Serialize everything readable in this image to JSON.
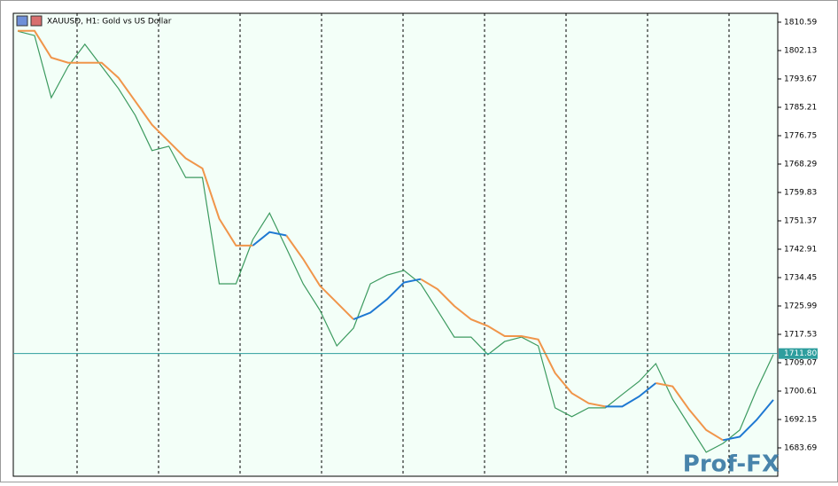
{
  "chart_data": {
    "type": "line",
    "title": "XAUUSD, H1:  Gold vs US Dollar",
    "watermark": "Prof-FX",
    "categories": [
      null,
      null,
      null,
      null,
      null,
      null,
      null,
      null,
      null,
      null,
      null,
      null,
      null,
      null,
      null,
      null,
      null,
      null,
      null,
      null,
      null,
      null,
      null,
      null,
      null,
      null,
      null,
      null,
      null,
      null,
      null,
      null,
      null,
      null,
      null,
      null,
      null,
      null,
      null,
      null,
      null,
      null,
      null,
      null,
      null,
      null
    ],
    "series": [
      {
        "color": "#3c9a5f",
        "values": [
          1807.9,
          1806.6,
          1788.1,
          1797.4,
          1804,
          1797.4,
          1790.8,
          1782.8,
          1772.3,
          1773.6,
          1764.3,
          1764.3,
          1732.6,
          1732.6,
          1745.8,
          1753.7,
          1743.2,
          1732.6,
          1724.7,
          1714.1,
          1719.4,
          1732.6,
          1735.2,
          1736.6,
          1732.6,
          1724.7,
          1716.7,
          1716.7,
          1711.5,
          1715.4,
          1716.7,
          1714.1,
          1695.6,
          1693,
          1695.6,
          1695.6,
          1699.6,
          1703.5,
          1708.8,
          1698.2,
          1690.3,
          1682.4,
          1685,
          1689,
          1700.9,
          1711.5
        ]
      },
      {
        "color": "#f0954a",
        "values": [
          1808,
          1808,
          1800,
          1798.5,
          1798.5,
          1798.5,
          1794,
          1787,
          1780,
          1775,
          1770,
          1767,
          1752,
          1744,
          1744,
          null,
          1747,
          1740,
          1732,
          1727,
          1722,
          null,
          null,
          null,
          1734,
          1731,
          1726,
          1722,
          1720,
          1717,
          1717,
          1716,
          1706,
          1700,
          1697,
          1696,
          null,
          null,
          1703,
          1702,
          1695,
          1689,
          1686,
          null,
          null,
          null
        ]
      },
      {
        "color": "#1e78d2",
        "values": [
          null,
          null,
          null,
          null,
          null,
          null,
          null,
          null,
          null,
          null,
          null,
          null,
          null,
          null,
          1744,
          1748,
          1747,
          null,
          null,
          null,
          1722,
          1724,
          1728,
          1733,
          1734,
          null,
          null,
          null,
          null,
          null,
          null,
          null,
          null,
          null,
          null,
          1696,
          1696,
          1699,
          1703,
          null,
          null,
          null,
          1686,
          1687,
          1692,
          1698
        ]
      }
    ],
    "ylim": [
      1675.23,
      1813.23
    ],
    "yticks": [
      1810.59,
      1802.13,
      1793.67,
      1785.21,
      1776.75,
      1768.29,
      1759.83,
      1751.37,
      1742.91,
      1734.45,
      1725.99,
      1717.53,
      1709.07,
      1700.61,
      1692.15,
      1683.69
    ],
    "current_price": {
      "value": 1711.8,
      "label": "1711.80"
    },
    "current_price_color": "#2e9e9e",
    "grid": false
  }
}
